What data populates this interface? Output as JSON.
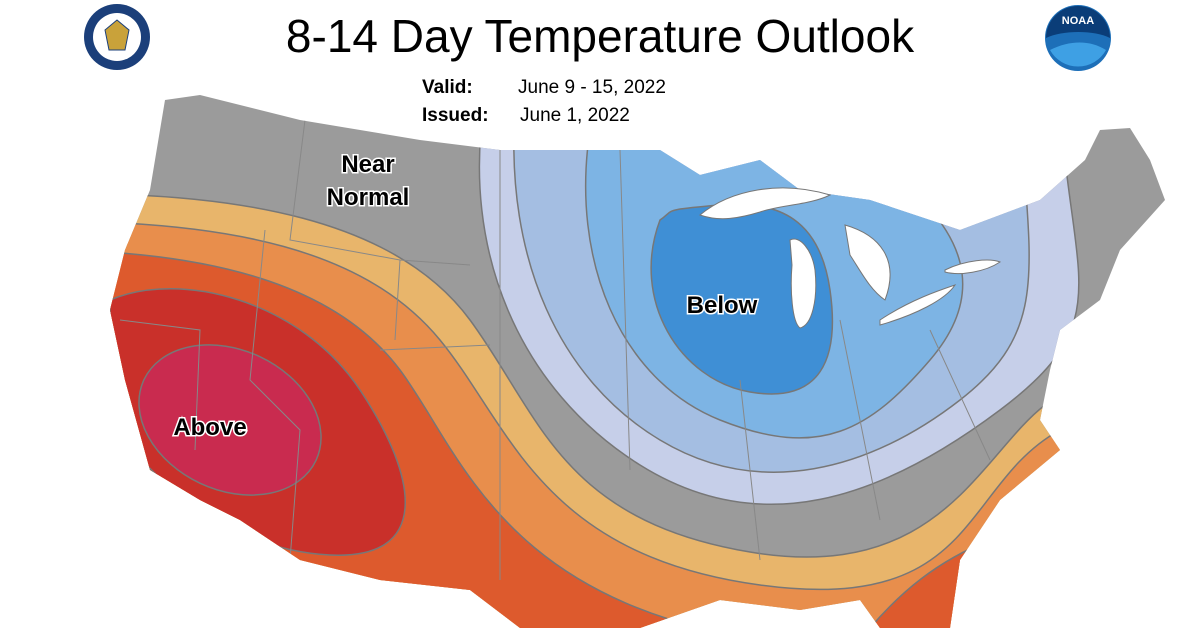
{
  "header": {
    "title": "8-14 Day Temperature Outlook",
    "valid_label": "Valid:",
    "valid_value": "June 9 - 15, 2022",
    "issued_label": "Issued:",
    "issued_value": "June 1, 2022"
  },
  "logos": {
    "noaa": "NOAA"
  },
  "map": {
    "near_normal": [
      "Near",
      "Normal"
    ],
    "below": "Below",
    "above": "Above"
  }
}
